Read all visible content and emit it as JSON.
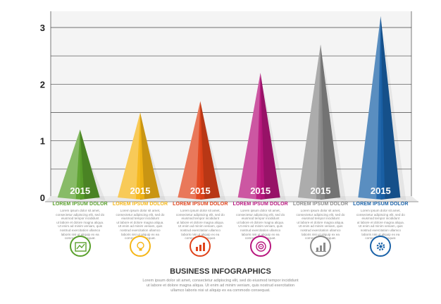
{
  "chart_data": {
    "type": "bar",
    "title": "BUSINESS INFOGRAPHICS",
    "ylim": [
      0,
      3
    ],
    "yticks": [
      "0",
      "1",
      "2",
      "3"
    ],
    "categories": [
      "2015",
      "2015",
      "2015",
      "2015",
      "2015",
      "2015"
    ],
    "values": [
      1.2,
      1.5,
      1.7,
      2.2,
      2.7,
      3.2
    ],
    "colors": [
      "#5aa02c",
      "#f5b617",
      "#e0431a",
      "#b8167e",
      "#8c8c8c",
      "#1a62a8"
    ]
  },
  "columns": [
    {
      "label": "LOREM IPSUM DOLOR",
      "color": "#5aa02c",
      "icon": "chart-image-icon",
      "desc": [
        "Lorem ipsum dolor sit amet,",
        "consectetur adipiscing elit, sed do",
        "eiusmod tempor incididunt",
        "ut labore et dolore magna aliqua.",
        "Ut enim ad minim veniam, quis",
        "nostrud exercitation ullamco",
        "laboris nisi ut aliquip ex ea",
        "commodo consequat."
      ]
    },
    {
      "label": "LOREM IPSUM DOLOR",
      "color": "#f5b617",
      "icon": "lightbulb-icon",
      "desc": [
        "Lorem ipsum dolor sit amet,",
        "consectetur adipiscing elit, sed do",
        "eiusmod tempor incididunt",
        "ut labore et dolore magna aliqua.",
        "Ut enim ad minim veniam, quis",
        "nostrud exercitation ullamco",
        "laboris nisi ut aliquip ex ea",
        "commodo consequat."
      ]
    },
    {
      "label": "LOREM IPSUM DOLOR",
      "color": "#e0431a",
      "icon": "growth-chart-icon",
      "desc": [
        "Lorem ipsum dolor sit amet,",
        "consectetur adipiscing elit, sed do",
        "eiusmod tempor incididunt",
        "ut labore et dolore magna aliqua.",
        "Ut enim ad minim veniam, quis",
        "nostrud exercitation ullamco",
        "laboris nisi ut aliquip ex ea",
        "commodo consequat."
      ]
    },
    {
      "label": "LOREM IPSUM DOLOR",
      "color": "#b8167e",
      "icon": "target-icon",
      "desc": [
        "Lorem ipsum dolor sit amet,",
        "consectetur adipiscing elit, sed do",
        "eiusmod tempor incididunt",
        "ut labore et dolore magna aliqua.",
        "Ut enim ad minim veniam, quis",
        "nostrud exercitation ullamco",
        "laboris nisi ut aliquip ex ea",
        "commodo consequat."
      ]
    },
    {
      "label": "LOREM IPSUM DOLOR",
      "color": "#8c8c8c",
      "icon": "bar-chart-icon",
      "desc": [
        "Lorem ipsum dolor sit amet,",
        "consectetur adipiscing elit, sed do",
        "eiusmod tempor incididunt",
        "ut labore et dolore magna aliqua.",
        "Ut enim ad minim veniam, quis",
        "nostrud exercitation ullamco",
        "laboris nisi ut aliquip ex ea",
        "commodo consequat."
      ]
    },
    {
      "label": "LOREM IPSUM DOLOR",
      "color": "#1a62a8",
      "icon": "gear-icon",
      "desc": [
        "Lorem ipsum dolor sit amet,",
        "consectetur adipiscing elit, sed do",
        "eiusmod tempor incididunt",
        "ut labore et dolore magna aliqua.",
        "Ut enim ad minim veniam, quis",
        "nostrud exercitation ullamco",
        "laboris nisi ut aliquip ex ea",
        "commodo consequat."
      ]
    }
  ],
  "footer": {
    "title": "BUSINESS INFOGRAPHICS",
    "desc": [
      "Lorem ipsum dolor sit amet, consectetur adipiscing elit, sed do eiusmod tempor incididunt",
      "ut labore et dolore magna aliqua. Ut enim ad minim veniam, quis nostrud exercitation",
      "ullamco laboris nisi ut aliquip ex ea commodo consequat."
    ]
  }
}
